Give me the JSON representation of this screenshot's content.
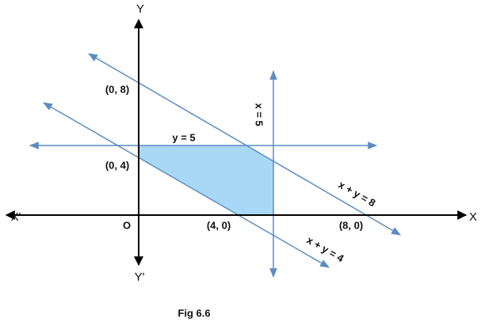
{
  "figure": {
    "axes": {
      "y_top": "Y",
      "y_bottom": "Y'",
      "x_left": "X'",
      "x_right": "X",
      "origin": "O"
    },
    "points": {
      "p08": "(0, 8)",
      "p04": "(0, 4)",
      "p40": "(4, 0)",
      "p80": "(8, 0)"
    },
    "lines": {
      "y5": "y = 5",
      "x5": "x = 5",
      "xy8": "x + y = 8",
      "xy4": "x + y = 4"
    },
    "caption": "Fig 6.6"
  }
}
